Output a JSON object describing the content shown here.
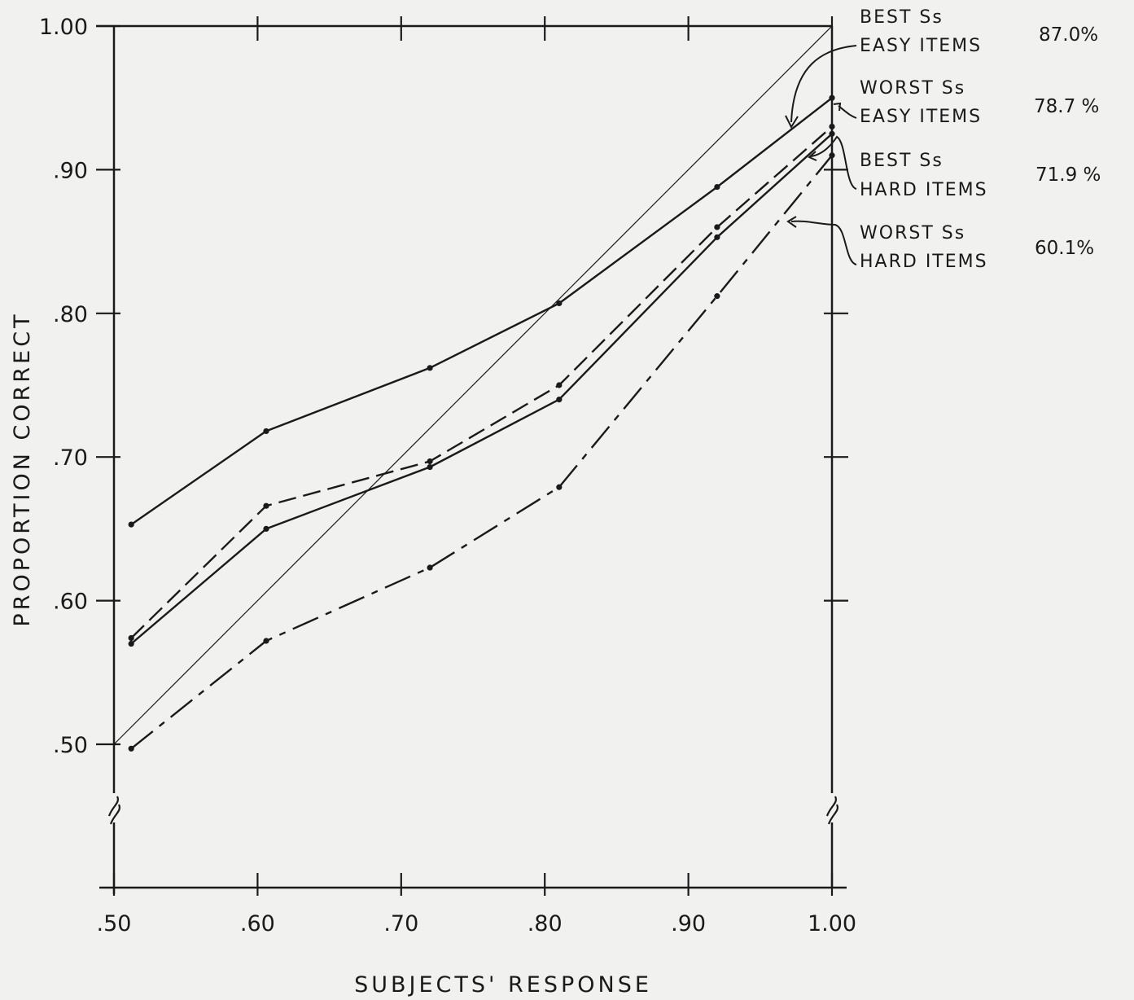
{
  "chart_data": {
    "type": "line",
    "title": "",
    "xlabel": "SUBJECTS' RESPONSE",
    "ylabel": "PROPORTION CORRECT",
    "xlim": [
      0.5,
      1.0
    ],
    "ylim": [
      0.5,
      1.0
    ],
    "x_ticks": [
      0.5,
      0.6,
      0.7,
      0.8,
      0.9,
      1.0
    ],
    "x_tick_labels": [
      ".50",
      ".60",
      ".70",
      ".80",
      ".90",
      "1.00"
    ],
    "y_ticks": [
      0.5,
      0.6,
      0.7,
      0.8,
      0.9,
      1.0
    ],
    "y_tick_labels": [
      ".50",
      ".60",
      ".70",
      ".80",
      ".90",
      "1.00"
    ],
    "axis_breaks": true,
    "grid": false,
    "reference_line": {
      "x": [
        0.5,
        1.0
      ],
      "y": [
        0.5,
        1.0
      ]
    },
    "legend_position": "right",
    "series": [
      {
        "name_lines": [
          "BEST Ss",
          "EASY ITEMS"
        ],
        "percent": "87.0%",
        "style": "solid",
        "x": [
          0.512,
          0.606,
          0.72,
          0.81,
          0.92,
          1.0
        ],
        "y": [
          0.653,
          0.718,
          0.762,
          0.807,
          0.888,
          0.95
        ]
      },
      {
        "name_lines": [
          "WORST Ss",
          "EASY ITEMS"
        ],
        "percent": "78.7 %",
        "style": "dashed",
        "x": [
          0.512,
          0.606,
          0.72,
          0.81,
          0.92,
          1.0
        ],
        "y": [
          0.574,
          0.666,
          0.697,
          0.75,
          0.86,
          0.93
        ]
      },
      {
        "name_lines": [
          "BEST Ss",
          "HARD ITEMS"
        ],
        "percent": "71.9 %",
        "style": "solid",
        "x": [
          0.512,
          0.606,
          0.72,
          0.81,
          0.92,
          1.0
        ],
        "y": [
          0.57,
          0.65,
          0.693,
          0.74,
          0.853,
          0.925
        ]
      },
      {
        "name_lines": [
          "WORST Ss",
          "HARD ITEMS"
        ],
        "percent": "60.1%",
        "style": "longdash",
        "x": [
          0.512,
          0.606,
          0.72,
          0.81,
          0.92,
          1.0
        ],
        "y": [
          0.497,
          0.572,
          0.623,
          0.679,
          0.812,
          0.91
        ]
      }
    ]
  }
}
